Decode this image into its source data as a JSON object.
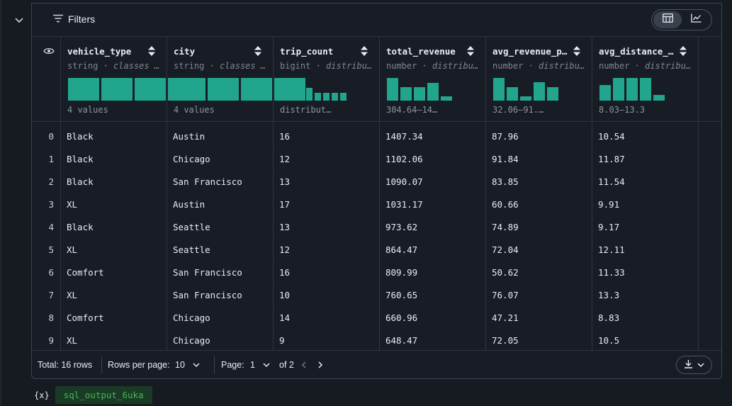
{
  "toolbar": {
    "filters_label": "Filters"
  },
  "columns": [
    {
      "name": "vehicle_type",
      "type": "string",
      "kind": "classes …",
      "summary": "4 values",
      "hist": [
        1,
        1,
        1,
        1
      ]
    },
    {
      "name": "city",
      "type": "string",
      "kind": "classes …",
      "summary": "4 values",
      "hist": [
        1,
        1,
        1,
        1
      ]
    },
    {
      "name": "trip_count",
      "type": "bigint",
      "kind": "distribu…",
      "summary": "distribut…",
      "hist": [
        1.0,
        0.72,
        0.72,
        0.56,
        0.34,
        0.34,
        0.34,
        0.34
      ]
    },
    {
      "name": "total_revenue",
      "type": "number",
      "kind": "distribu…",
      "summary": "304.64–14…",
      "hist": [
        1.0,
        0.6,
        0.6,
        0.78,
        0.2
      ]
    },
    {
      "name": "avg_revenue_p…",
      "type": "number",
      "kind": "distribu…",
      "summary": "32.06–91.…",
      "hist": [
        1.0,
        0.6,
        0.2,
        0.8,
        0.6
      ]
    },
    {
      "name": "avg_distance_…",
      "type": "number",
      "kind": "distribu…",
      "summary": "8.03–13.3",
      "hist": [
        0.7,
        1.0,
        1.0,
        1.0,
        0.25
      ]
    }
  ],
  "rows": [
    {
      "i": "0",
      "c": [
        "Black",
        "Austin",
        "16",
        "1407.34",
        "87.96",
        "10.54"
      ]
    },
    {
      "i": "1",
      "c": [
        "Black",
        "Chicago",
        "12",
        "1102.06",
        "91.84",
        "11.87"
      ]
    },
    {
      "i": "2",
      "c": [
        "Black",
        "San Francisco",
        "13",
        "1090.07",
        "83.85",
        "11.54"
      ]
    },
    {
      "i": "3",
      "c": [
        "XL",
        "Austin",
        "17",
        "1031.17",
        "60.66",
        "9.91"
      ]
    },
    {
      "i": "4",
      "c": [
        "Black",
        "Seattle",
        "13",
        "973.62",
        "74.89",
        "9.17"
      ]
    },
    {
      "i": "5",
      "c": [
        "XL",
        "Seattle",
        "12",
        "864.47",
        "72.04",
        "12.11"
      ]
    },
    {
      "i": "6",
      "c": [
        "Comfort",
        "San Francisco",
        "16",
        "809.99",
        "50.62",
        "11.33"
      ]
    },
    {
      "i": "7",
      "c": [
        "XL",
        "San Francisco",
        "10",
        "760.65",
        "76.07",
        "13.3"
      ]
    },
    {
      "i": "8",
      "c": [
        "Comfort",
        "Chicago",
        "14",
        "660.96",
        "47.21",
        "8.83"
      ]
    },
    {
      "i": "9",
      "c": [
        "XL",
        "Chicago",
        "9",
        "648.47",
        "72.05",
        "10.5"
      ]
    }
  ],
  "footer": {
    "total": "Total: 16 rows",
    "rows_per_page_label": "Rows per page:",
    "rows_per_page_value": "10",
    "page_label": "Page:",
    "page_value": "1",
    "page_of": "of 2"
  },
  "variable": {
    "icon": "{x}",
    "name": "sql_output_6uka"
  },
  "colors": {
    "accent": "#21a68d",
    "var_bg": "#1b3a26",
    "var_text": "#3fb950"
  }
}
